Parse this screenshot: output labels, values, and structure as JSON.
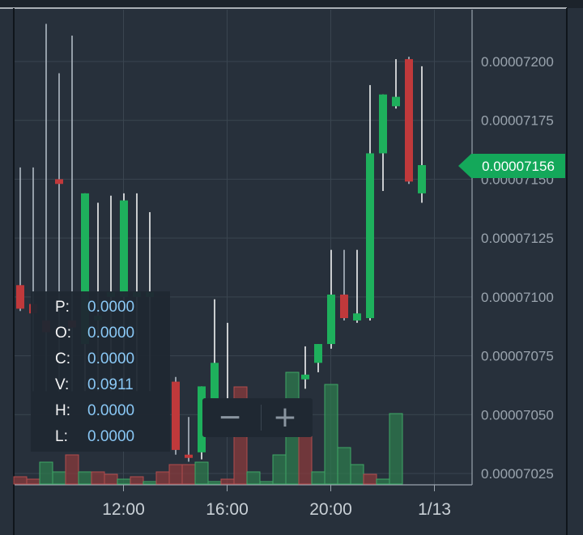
{
  "colors": {
    "background": "#27303b",
    "grid": "#3a4550",
    "up": "#1eb05c",
    "down": "#c0393b",
    "wick_up": "#ffffff",
    "wick_down": "#b9c2cc",
    "price_tag": "#14a85a",
    "volume_up": "#2e7a4d",
    "volume_down": "#8a3a3c"
  },
  "ohlc_panel": {
    "rows": [
      {
        "key": "P:",
        "value": "0.0000"
      },
      {
        "key": "O:",
        "value": "0.0000"
      },
      {
        "key": "C:",
        "value": "0.0000"
      },
      {
        "key": "V:",
        "value": "0.0911"
      },
      {
        "key": "H:",
        "value": "0.0000"
      },
      {
        "key": "L:",
        "value": "0.0000"
      }
    ]
  },
  "zoom_controls": {
    "zoom_out_label": "−",
    "zoom_in_label": "+"
  },
  "chart_data": {
    "type": "candlestick",
    "current_price": "0.00007156",
    "y_ticks": [
      "0.00007200",
      "0.00007175",
      "0.00007150",
      "0.00007125",
      "0.00007100",
      "0.00007075",
      "0.00007050",
      "0.00007025"
    ],
    "x_ticks": [
      {
        "label": "12:00",
        "t": 8
      },
      {
        "label": "16:00",
        "t": 16
      },
      {
        "label": "20:00",
        "t": 24
      },
      {
        "label": "1/13",
        "t": 32
      }
    ],
    "y_range": [
      7.02e-05,
      7.225e-05
    ],
    "candles": [
      {
        "t": 0,
        "o": 7.105e-05,
        "c": 7.095e-05,
        "h": 7.155e-05,
        "l": 7.094e-05
      },
      {
        "t": 1,
        "o": 7.097e-05,
        "c": 7.093e-05,
        "h": 7.155e-05,
        "l": 7.06e-05
      },
      {
        "t": 2,
        "o": 7.09e-05,
        "c": 7.085e-05,
        "h": 7.216e-05,
        "l": 7.06e-05
      },
      {
        "t": 3,
        "o": 7.15e-05,
        "c": 7.148e-05,
        "h": 7.195e-05,
        "l": 7.06e-05
      },
      {
        "t": 4,
        "o": 7.09e-05,
        "c": 7.087e-05,
        "h": 7.211e-05,
        "l": 7.06e-05
      },
      {
        "t": 5,
        "o": 7.08e-05,
        "c": 7.144e-05,
        "h": 7.144e-05,
        "l": 7.06e-05
      },
      {
        "t": 6,
        "o": 7.09e-05,
        "c": 7.092e-05,
        "h": 7.14e-05,
        "l": 7.06e-05
      },
      {
        "t": 7,
        "o": 7.1e-05,
        "c": 7.102e-05,
        "h": 7.143e-05,
        "l": 7.06e-05
      },
      {
        "t": 8,
        "o": 7.1e-05,
        "c": 7.141e-05,
        "h": 7.144e-05,
        "l": 7.06e-05
      },
      {
        "t": 9,
        "o": 7.1e-05,
        "c": 7.102e-05,
        "h": 7.144e-05,
        "l": 7.06e-05
      },
      {
        "t": 10,
        "o": 7.1e-05,
        "c": 7.102e-05,
        "h": 7.136e-05,
        "l": 7.06e-05
      },
      {
        "t": 12,
        "o": 7.064e-05,
        "c": 7.035e-05,
        "h": 7.066e-05,
        "l": 7.033e-05
      },
      {
        "t": 13,
        "o": 7.033e-05,
        "c": 7.032e-05,
        "h": 7.049e-05,
        "l": 7.03e-05
      },
      {
        "t": 14,
        "o": 7.034e-05,
        "c": 7.062e-05,
        "h": 7.062e-05,
        "l": 7.031e-05
      },
      {
        "t": 15,
        "o": 7.048e-05,
        "c": 7.072e-05,
        "h": 7.099e-05,
        "l": 7.044e-05
      },
      {
        "t": 16,
        "o": 7.052e-05,
        "c": 7.054e-05,
        "h": 7.089e-05,
        "l": 7.05e-05
      },
      {
        "t": 22,
        "o": 7.065e-05,
        "c": 7.067e-05,
        "h": 7.079e-05,
        "l": 7.061e-05
      },
      {
        "t": 23,
        "o": 7.072e-05,
        "c": 7.08e-05,
        "h": 7.08e-05,
        "l": 7.068e-05
      },
      {
        "t": 24,
        "o": 7.08e-05,
        "c": 7.101e-05,
        "h": 7.12e-05,
        "l": 7.078e-05
      },
      {
        "t": 25,
        "o": 7.101e-05,
        "c": 7.091e-05,
        "h": 7.12e-05,
        "l": 7.09e-05
      },
      {
        "t": 26,
        "o": 7.09e-05,
        "c": 7.093e-05,
        "h": 7.12e-05,
        "l": 7.089e-05
      },
      {
        "t": 27,
        "o": 7.091e-05,
        "c": 7.161e-05,
        "h": 7.19e-05,
        "l": 7.09e-05
      },
      {
        "t": 28,
        "o": 7.161e-05,
        "c": 7.186e-05,
        "h": 7.186e-05,
        "l": 7.145e-05
      },
      {
        "t": 29,
        "o": 7.181e-05,
        "c": 7.185e-05,
        "h": 7.201e-05,
        "l": 7.18e-05
      },
      {
        "t": 30,
        "o": 7.201e-05,
        "c": 7.149e-05,
        "h": 7.202e-05,
        "l": 7.148e-05
      },
      {
        "t": 31,
        "o": 7.144e-05,
        "c": 7.156e-05,
        "h": 7.198e-05,
        "l": 7.14e-05
      }
    ],
    "volume": [
      {
        "t": 0,
        "v": 0.03,
        "up": false
      },
      {
        "t": 1,
        "v": 0.02,
        "up": false
      },
      {
        "t": 2,
        "v": 0.09,
        "up": true
      },
      {
        "t": 3,
        "v": 0.05,
        "up": true
      },
      {
        "t": 4,
        "v": 0.12,
        "up": false
      },
      {
        "t": 5,
        "v": 0.05,
        "up": true
      },
      {
        "t": 6,
        "v": 0.05,
        "up": false
      },
      {
        "t": 7,
        "v": 0.04,
        "up": false
      },
      {
        "t": 8,
        "v": 0.02,
        "up": true
      },
      {
        "t": 9,
        "v": 0.03,
        "up": false
      },
      {
        "t": 10,
        "v": 0.01,
        "up": true
      },
      {
        "t": 11,
        "v": 0.05,
        "up": false
      },
      {
        "t": 12,
        "v": 0.08,
        "up": false
      },
      {
        "t": 13,
        "v": 0.08,
        "up": false
      },
      {
        "t": 14,
        "v": 0.09,
        "up": true
      },
      {
        "t": 15,
        "v": 0.01,
        "up": true
      },
      {
        "t": 16,
        "v": 0.02,
        "up": false
      },
      {
        "t": 17,
        "v": 0.4,
        "up": false
      },
      {
        "t": 18,
        "v": 0.05,
        "up": true
      },
      {
        "t": 19,
        "v": 0.01,
        "up": true
      },
      {
        "t": 20,
        "v": 0.12,
        "up": true
      },
      {
        "t": 21,
        "v": 0.46,
        "up": true
      },
      {
        "t": 22,
        "v": 0.26,
        "up": false
      },
      {
        "t": 23,
        "v": 0.05,
        "up": true
      },
      {
        "t": 24,
        "v": 0.41,
        "up": true
      },
      {
        "t": 25,
        "v": 0.15,
        "up": true
      },
      {
        "t": 26,
        "v": 0.08,
        "up": true
      },
      {
        "t": 27,
        "v": 0.04,
        "up": false
      },
      {
        "t": 28,
        "v": 0.02,
        "up": true
      },
      {
        "t": 29,
        "v": 0.29,
        "up": true
      }
    ]
  }
}
